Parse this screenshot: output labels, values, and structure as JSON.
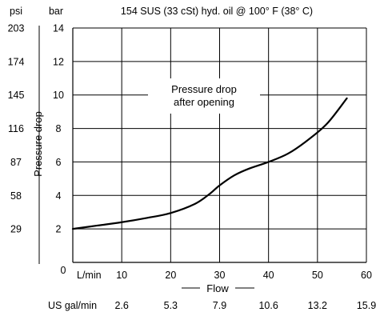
{
  "chart_data": {
    "type": "line",
    "title": "154 SUS (33 cSt) hyd. oil @ 100° F (38° C)",
    "ylabel": "Pressure drop",
    "xlabel": "Flow",
    "x_unit_label": "L/min",
    "x2_unit_label": "US gal/min",
    "y_unit_label": "bar",
    "y2_unit_label": "psi",
    "annotation": "Pressure drop after opening",
    "xlim": [
      0,
      60
    ],
    "ylim": [
      0,
      14
    ],
    "x_ticks": [
      "10",
      "20",
      "30",
      "40",
      "50",
      "60"
    ],
    "x2_ticks": [
      "2.6",
      "5.3",
      "7.9",
      "10.6",
      "13.2",
      "15.9"
    ],
    "y_ticks": [
      "2",
      "4",
      "6",
      "8",
      "10",
      "12",
      "14"
    ],
    "y2_ticks": [
      "29",
      "58",
      "87",
      "116",
      "145",
      "174",
      "203"
    ],
    "origin_label": "0",
    "grid": true,
    "series": [
      {
        "x": [
          0,
          5,
          10,
          15,
          20,
          25,
          28,
          30,
          33,
          36,
          40,
          44,
          48,
          52,
          56
        ],
        "values": [
          2.0,
          2.2,
          2.4,
          2.65,
          2.95,
          3.5,
          4.1,
          4.6,
          5.2,
          5.6,
          6.0,
          6.5,
          7.3,
          8.3,
          9.8
        ]
      }
    ],
    "colors": {
      "line": "#000000",
      "grid": "#000000",
      "text": "#000000"
    }
  }
}
